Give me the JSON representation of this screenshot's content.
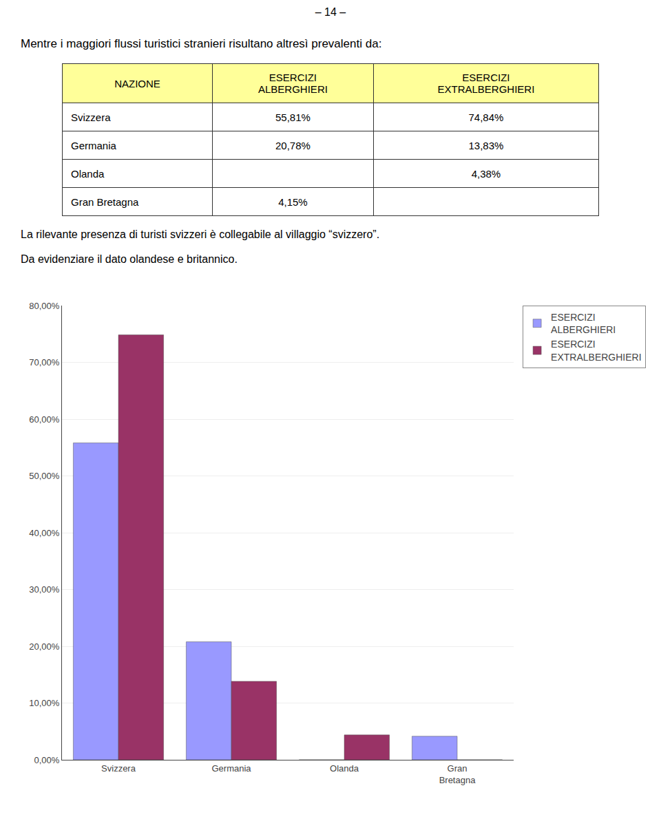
{
  "page_number": "– 14 –",
  "intro_text": "Mentre i maggiori flussi turistici stranieri risultano altresì prevalenti da:",
  "table": {
    "header_color": "#FFFF99",
    "col_headers": [
      "NAZIONE",
      "ESERCIZI\nALBERGHIERI",
      "ESERCIZI\nEXTRALBERGHIERI"
    ],
    "rows": [
      [
        "Svizzera",
        "55,81%",
        "74,84%"
      ],
      [
        "Germania",
        "20,78%",
        "13,83%"
      ],
      [
        "Olanda",
        null,
        "4,38%"
      ],
      [
        "Gran Bretagna",
        "4,15%",
        null
      ]
    ]
  },
  "body_texts": [
    "La rilevante presenza di turisti svizzeri è collegabile al villaggio “svizzero”.",
    "Da evidenziare il dato olandese e britannico."
  ],
  "chart_data": {
    "type": "bar",
    "categories": [
      "Svizzera",
      "Germania",
      "Olanda",
      "Gran\nBretagna"
    ],
    "series": [
      {
        "name": "ESERCIZI\nALBERGHIERI",
        "color": "#9999FF",
        "values": [
          55.81,
          20.78,
          0.0,
          4.15
        ]
      },
      {
        "name": "ESERCIZI\nEXTRALBERGHIERI",
        "color": "#993366",
        "values": [
          74.84,
          13.83,
          4.38,
          0.0
        ]
      }
    ],
    "ylim": [
      0,
      80
    ],
    "yticks": [
      {
        "value": 0,
        "label": "0,00%"
      },
      {
        "value": 10,
        "label": "10,00%"
      },
      {
        "value": 20,
        "label": "20,00%"
      },
      {
        "value": 30,
        "label": "30,00%"
      },
      {
        "value": 40,
        "label": "40,00%"
      },
      {
        "value": 50,
        "label": "50,00%"
      },
      {
        "value": 60,
        "label": "60,00%"
      },
      {
        "value": 70,
        "label": "70,00%"
      },
      {
        "value": 80,
        "label": "80,00%"
      }
    ],
    "grid": true,
    "legend": "upper right"
  }
}
